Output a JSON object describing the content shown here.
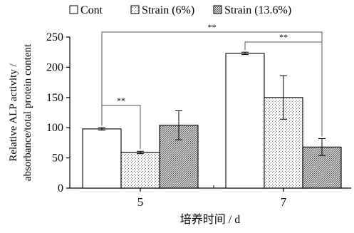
{
  "chart_data": {
    "type": "bar",
    "categories": [
      "5",
      "7"
    ],
    "series": [
      {
        "name": "Cont",
        "values": [
          98,
          223
        ],
        "errors": [
          2,
          2
        ],
        "pattern": "white"
      },
      {
        "name": "Strain (6%)",
        "values": [
          59,
          150
        ],
        "errors": [
          2,
          36
        ],
        "pattern": "light-dots"
      },
      {
        "name": "Strain (13.6%)",
        "values": [
          104,
          68
        ],
        "errors": [
          24,
          14
        ],
        "pattern": "dense-dots"
      }
    ],
    "xlabel": "培养时间 / d",
    "ylabel": [
      "Relative ALP activity /",
      "absorbance/total protein content"
    ],
    "ylim": [
      0,
      250
    ],
    "yticks": [
      "0",
      "50",
      "100",
      "150",
      "200",
      "250"
    ],
    "legend_position": "top",
    "significance": [
      {
        "label": "**",
        "from_group": 0,
        "from_series": 0,
        "to_group": 1,
        "to_series": 2
      },
      {
        "label": "**",
        "from_group": 0,
        "from_series": 0,
        "to_group": 0,
        "to_series": 1
      },
      {
        "label": "**",
        "from_group": 1,
        "from_series": 0,
        "to_group": 1,
        "to_series": 2
      }
    ],
    "grid": false
  }
}
